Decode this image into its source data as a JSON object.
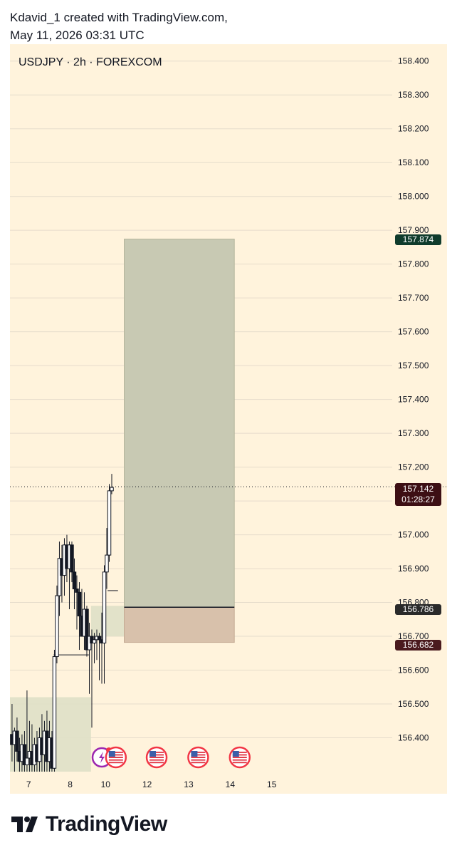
{
  "attribution": {
    "line1": "Kdavid_1 created with TradingView.com,",
    "line2": "May 11, 2026 03:31 UTC"
  },
  "symbol_info": "USDJPY · 2h · FOREXCOM",
  "footer": {
    "brand": "TradingView"
  },
  "price_tags": {
    "target": "157.874",
    "current_price": "157.142",
    "countdown": "01:28:27",
    "entry": "156.786",
    "stop": "156.682"
  },
  "colors": {
    "background": "#fff3dc",
    "target_zone": "#c8c9b3",
    "stop_zone": "#d8c1ab",
    "demand_zone": "#dfe0c7",
    "target_tag": "#0f3b2c",
    "current_tag": "#3d0f14",
    "entry_tag": "#2a2a2a",
    "stop_tag": "#4a1a1e"
  },
  "chart_data": {
    "type": "candlestick",
    "symbol": "USDJPY",
    "timeframe": "2h",
    "exchange": "FOREXCOM",
    "y_axis": {
      "side": "right",
      "range": [
        156.3,
        158.45
      ],
      "ticks": [
        "158.400",
        "158.300",
        "158.200",
        "158.100",
        "158.000",
        "157.900",
        "157.800",
        "157.700",
        "157.600",
        "157.500",
        "157.400",
        "157.300",
        "157.200",
        "157.100",
        "157.000",
        "156.900",
        "156.800",
        "156.700",
        "156.600",
        "156.500",
        "156.400"
      ]
    },
    "x_axis": {
      "range": [
        6.55,
        15.75
      ],
      "ticks": [
        {
          "label": "7",
          "value": 7
        },
        {
          "label": "8",
          "value": 8
        },
        {
          "label": "10",
          "value": 8.85
        },
        {
          "label": "12",
          "value": 9.85
        },
        {
          "label": "13",
          "value": 10.85
        },
        {
          "label": "14",
          "value": 11.85
        },
        {
          "label": "15",
          "value": 12.85
        }
      ]
    },
    "grid": true,
    "current_price": 157.142,
    "position": {
      "side": "long",
      "entry": 156.786,
      "target": 157.874,
      "stop": 156.682,
      "t_start": 9.3,
      "t_end": 11.95
    },
    "zones": [
      {
        "t_start": 6.55,
        "t_end": 8.5,
        "top": 156.52,
        "bottom": 156.3
      },
      {
        "t_start": 8.5,
        "t_end": 9.4,
        "top": 156.79,
        "bottom": 156.7
      }
    ],
    "levels": [
      {
        "price": 156.645,
        "t_start": 7.6,
        "t_end": 8.45
      },
      {
        "price": 156.835,
        "t_start": 8.9,
        "t_end": 9.15
      }
    ],
    "events": [
      {
        "type": "earnings",
        "t": 8.76
      },
      {
        "type": "us-flag",
        "t": 9.1
      },
      {
        "type": "us-flag",
        "t": 10.08
      },
      {
        "type": "us-flag",
        "t": 11.08
      },
      {
        "type": "us-flag",
        "t": 12.08
      }
    ],
    "candles": [
      {
        "t": 6.6,
        "o": 156.41,
        "h": 156.5,
        "l": 156.33,
        "c": 156.38
      },
      {
        "t": 6.66,
        "o": 156.38,
        "h": 156.43,
        "l": 156.3,
        "c": 156.42
      },
      {
        "t": 6.72,
        "o": 156.42,
        "h": 156.46,
        "l": 156.33,
        "c": 156.36
      },
      {
        "t": 6.78,
        "o": 156.36,
        "h": 156.4,
        "l": 156.3,
        "c": 156.33
      },
      {
        "t": 6.84,
        "o": 156.33,
        "h": 156.41,
        "l": 156.3,
        "c": 156.38
      },
      {
        "t": 6.9,
        "o": 156.38,
        "h": 156.42,
        "l": 156.3,
        "c": 156.32
      },
      {
        "t": 6.96,
        "o": 156.32,
        "h": 156.54,
        "l": 156.3,
        "c": 156.34
      },
      {
        "t": 7.02,
        "o": 156.34,
        "h": 156.45,
        "l": 156.3,
        "c": 156.36
      },
      {
        "t": 7.08,
        "o": 156.36,
        "h": 156.44,
        "l": 156.3,
        "c": 156.32
      },
      {
        "t": 7.14,
        "o": 156.32,
        "h": 156.4,
        "l": 156.3,
        "c": 156.38
      },
      {
        "t": 7.2,
        "o": 156.38,
        "h": 156.42,
        "l": 156.3,
        "c": 156.33
      },
      {
        "t": 7.26,
        "o": 156.33,
        "h": 156.43,
        "l": 156.3,
        "c": 156.4
      },
      {
        "t": 7.32,
        "o": 156.4,
        "h": 156.47,
        "l": 156.3,
        "c": 156.35
      },
      {
        "t": 7.38,
        "o": 156.35,
        "h": 156.45,
        "l": 156.3,
        "c": 156.42
      },
      {
        "t": 7.44,
        "o": 156.42,
        "h": 156.48,
        "l": 156.3,
        "c": 156.33
      },
      {
        "t": 7.5,
        "o": 156.33,
        "h": 156.45,
        "l": 156.3,
        "c": 156.4
      },
      {
        "t": 7.56,
        "o": 156.4,
        "h": 156.42,
        "l": 156.3,
        "c": 156.31
      },
      {
        "t": 7.62,
        "o": 156.31,
        "h": 156.66,
        "l": 156.3,
        "c": 156.64
      },
      {
        "t": 7.68,
        "o": 156.64,
        "h": 156.85,
        "l": 156.62,
        "c": 156.82
      },
      {
        "t": 7.74,
        "o": 156.82,
        "h": 156.98,
        "l": 156.76,
        "c": 156.93
      },
      {
        "t": 7.8,
        "o": 156.93,
        "h": 156.97,
        "l": 156.8,
        "c": 156.88
      },
      {
        "t": 7.86,
        "o": 156.88,
        "h": 156.99,
        "l": 156.82,
        "c": 156.97
      },
      {
        "t": 7.92,
        "o": 156.97,
        "h": 157.0,
        "l": 156.86,
        "c": 156.9
      },
      {
        "t": 7.98,
        "o": 156.9,
        "h": 156.98,
        "l": 156.78,
        "c": 156.97
      },
      {
        "t": 8.04,
        "o": 156.97,
        "h": 156.98,
        "l": 156.86,
        "c": 156.89
      },
      {
        "t": 8.1,
        "o": 156.89,
        "h": 156.93,
        "l": 156.78,
        "c": 156.84
      },
      {
        "t": 8.16,
        "o": 156.84,
        "h": 156.88,
        "l": 156.72,
        "c": 156.83
      },
      {
        "t": 8.22,
        "o": 156.83,
        "h": 156.86,
        "l": 156.66,
        "c": 156.76
      },
      {
        "t": 8.28,
        "o": 156.76,
        "h": 156.84,
        "l": 156.7,
        "c": 156.7
      },
      {
        "t": 8.34,
        "o": 156.7,
        "h": 156.83,
        "l": 156.66,
        "c": 156.78
      },
      {
        "t": 8.4,
        "o": 156.78,
        "h": 156.79,
        "l": 156.64,
        "c": 156.66
      },
      {
        "t": 8.46,
        "o": 156.66,
        "h": 156.74,
        "l": 156.53,
        "c": 156.7
      },
      {
        "t": 8.52,
        "o": 156.7,
        "h": 156.72,
        "l": 156.43,
        "c": 156.68
      },
      {
        "t": 8.58,
        "o": 156.68,
        "h": 156.71,
        "l": 156.62,
        "c": 156.69
      },
      {
        "t": 8.64,
        "o": 156.69,
        "h": 156.72,
        "l": 156.63,
        "c": 156.7
      },
      {
        "t": 8.7,
        "o": 156.7,
        "h": 156.71,
        "l": 156.57,
        "c": 156.69
      },
      {
        "t": 8.76,
        "o": 156.69,
        "h": 156.77,
        "l": 156.56,
        "c": 156.68
      },
      {
        "t": 8.82,
        "o": 156.68,
        "h": 156.91,
        "l": 156.56,
        "c": 156.89
      },
      {
        "t": 8.88,
        "o": 156.89,
        "h": 157.02,
        "l": 156.84,
        "c": 156.94
      },
      {
        "t": 8.94,
        "o": 156.94,
        "h": 157.15,
        "l": 156.92,
        "c": 157.13
      },
      {
        "t": 9.0,
        "o": 157.13,
        "h": 157.18,
        "l": 157.12,
        "c": 157.14
      }
    ]
  }
}
